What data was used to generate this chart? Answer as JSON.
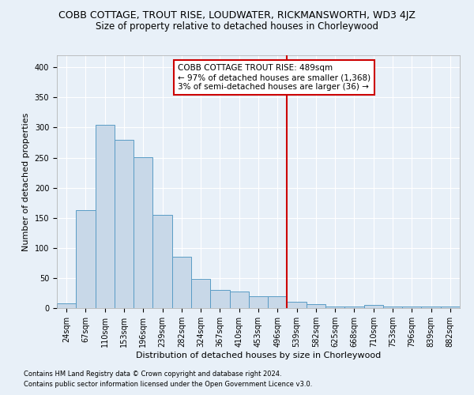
{
  "title": "COBB COTTAGE, TROUT RISE, LOUDWATER, RICKMANSWORTH, WD3 4JZ",
  "subtitle": "Size of property relative to detached houses in Chorleywood",
  "xlabel": "Distribution of detached houses by size in Chorleywood",
  "ylabel": "Number of detached properties",
  "footnote1": "Contains HM Land Registry data © Crown copyright and database right 2024.",
  "footnote2": "Contains public sector information licensed under the Open Government Licence v3.0.",
  "bar_labels": [
    "24sqm",
    "67sqm",
    "110sqm",
    "153sqm",
    "196sqm",
    "239sqm",
    "282sqm",
    "324sqm",
    "367sqm",
    "410sqm",
    "453sqm",
    "496sqm",
    "539sqm",
    "582sqm",
    "625sqm",
    "668sqm",
    "710sqm",
    "753sqm",
    "796sqm",
    "839sqm",
    "882sqm"
  ],
  "bar_values": [
    8,
    163,
    305,
    280,
    251,
    155,
    85,
    49,
    30,
    27,
    20,
    20,
    11,
    7,
    3,
    3,
    5,
    2,
    2,
    2,
    3
  ],
  "bar_color": "#c8d8e8",
  "bar_edge_color": "#5a9cc5",
  "background_color": "#e8f0f8",
  "grid_color": "#ffffff",
  "ylim": [
    0,
    420
  ],
  "yticks": [
    0,
    50,
    100,
    150,
    200,
    250,
    300,
    350,
    400
  ],
  "vline_x_index": 11.5,
  "vline_color": "#cc0000",
  "annotation_title": "COBB COTTAGE TROUT RISE: 489sqm",
  "annotation_line1": "← 97% of detached houses are smaller (1,368)",
  "annotation_line2": "3% of semi-detached houses are larger (36) →",
  "annotation_box_color": "#cc0000",
  "title_fontsize": 9,
  "subtitle_fontsize": 8.5,
  "tick_fontsize": 7,
  "ylabel_fontsize": 8,
  "xlabel_fontsize": 8,
  "annotation_fontsize": 7.5
}
